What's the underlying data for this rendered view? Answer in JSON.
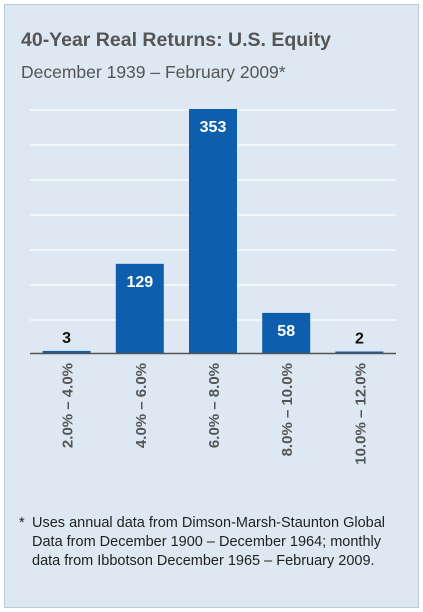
{
  "chart_data": {
    "type": "bar",
    "title": "40-Year Real Returns: U.S. Equity",
    "subtitle": "December 1939 – February 2009*",
    "categories": [
      "2.0% – 4.0%",
      "4.0% – 6.0%",
      "6.0% – 8.0%",
      "8.0% – 10.0%",
      "10.0% – 12.0%"
    ],
    "values": [
      3,
      129,
      353,
      58,
      2
    ],
    "data_labels": [
      "3",
      "129",
      "353",
      "58",
      "2"
    ],
    "ylim": [
      0,
      353
    ],
    "grid": true,
    "bar_color": "#0d5fad",
    "gridline_color": "#ffffff",
    "axis_color": "#555555"
  },
  "footnote": {
    "marker": "*",
    "text": "Uses annual data from Dimson-Marsh-Staunton Global Data from December 1900 – December 1964; monthly data from Ibbotson December 1965 – February 2009."
  }
}
